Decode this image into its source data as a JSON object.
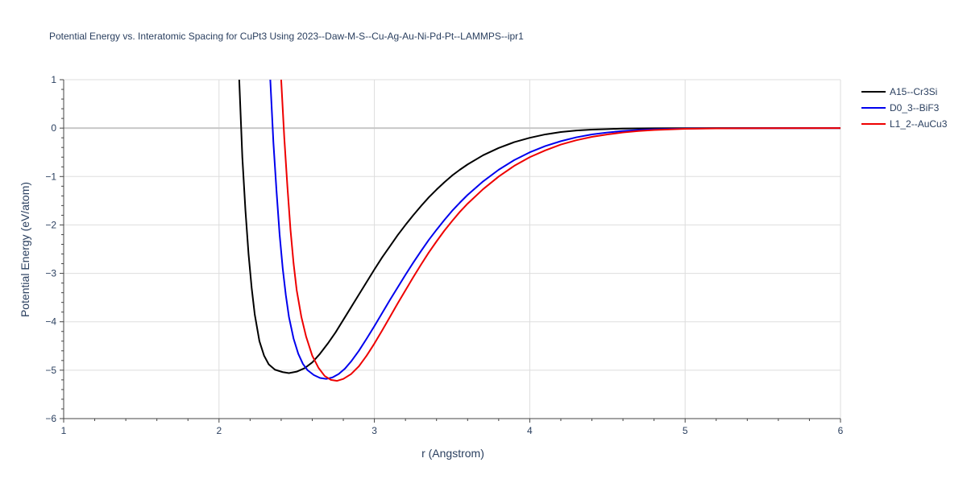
{
  "chart_data": {
    "type": "line",
    "title": "Potential Energy vs. Interatomic Spacing for CuPt3 Using 2023--Daw-M-S--Cu-Ag-Au-Ni-Pd-Pt--LAMMPS--ipr1",
    "xlabel": "r (Angstrom)",
    "ylabel": "Potential Energy (eV/atom)",
    "xlim": [
      1,
      6
    ],
    "ylim": [
      -6,
      1
    ],
    "xticks": [
      1,
      2,
      3,
      4,
      5,
      6
    ],
    "yticks": [
      1,
      0,
      -1,
      -2,
      -3,
      -4,
      -5,
      -6
    ],
    "xtick_labels": [
      "1",
      "2",
      "3",
      "4",
      "5",
      "6"
    ],
    "ytick_labels": [
      "1",
      "0",
      "−1",
      "−2",
      "−3",
      "−4",
      "−5",
      "−6"
    ],
    "grid": true,
    "legend_position": "top-right",
    "series": [
      {
        "name": "A15--Cr3Si",
        "color": "#000000",
        "points": [
          [
            2.13,
            1.0
          ],
          [
            2.15,
            -0.6
          ],
          [
            2.17,
            -1.7
          ],
          [
            2.19,
            -2.6
          ],
          [
            2.21,
            -3.3
          ],
          [
            2.23,
            -3.85
          ],
          [
            2.26,
            -4.4
          ],
          [
            2.29,
            -4.7
          ],
          [
            2.32,
            -4.88
          ],
          [
            2.36,
            -4.99
          ],
          [
            2.41,
            -5.04
          ],
          [
            2.45,
            -5.06
          ],
          [
            2.5,
            -5.03
          ],
          [
            2.55,
            -4.96
          ],
          [
            2.6,
            -4.84
          ],
          [
            2.65,
            -4.66
          ],
          [
            2.7,
            -4.45
          ],
          [
            2.75,
            -4.22
          ],
          [
            2.8,
            -3.96
          ],
          [
            2.85,
            -3.7
          ],
          [
            2.9,
            -3.44
          ],
          [
            2.95,
            -3.18
          ],
          [
            3.0,
            -2.92
          ],
          [
            3.05,
            -2.67
          ],
          [
            3.1,
            -2.44
          ],
          [
            3.15,
            -2.21
          ],
          [
            3.2,
            -2.0
          ],
          [
            3.25,
            -1.8
          ],
          [
            3.3,
            -1.61
          ],
          [
            3.35,
            -1.43
          ],
          [
            3.4,
            -1.27
          ],
          [
            3.45,
            -1.12
          ],
          [
            3.5,
            -0.98
          ],
          [
            3.55,
            -0.86
          ],
          [
            3.6,
            -0.75
          ],
          [
            3.7,
            -0.56
          ],
          [
            3.8,
            -0.41
          ],
          [
            3.9,
            -0.29
          ],
          [
            4.0,
            -0.2
          ],
          [
            4.1,
            -0.13
          ],
          [
            4.2,
            -0.08
          ],
          [
            4.3,
            -0.05
          ],
          [
            4.4,
            -0.03
          ],
          [
            4.5,
            -0.02
          ],
          [
            4.6,
            -0.01
          ],
          [
            4.8,
            -0.004
          ],
          [
            5.0,
            -0.001
          ],
          [
            5.5,
            0.0
          ],
          [
            6.0,
            0.0
          ]
        ]
      },
      {
        "name": "D0_3--BiF3",
        "color": "#0000ee",
        "points": [
          [
            2.33,
            1.0
          ],
          [
            2.35,
            -0.3
          ],
          [
            2.37,
            -1.3
          ],
          [
            2.39,
            -2.2
          ],
          [
            2.41,
            -2.9
          ],
          [
            2.43,
            -3.45
          ],
          [
            2.45,
            -3.9
          ],
          [
            2.48,
            -4.35
          ],
          [
            2.51,
            -4.66
          ],
          [
            2.54,
            -4.87
          ],
          [
            2.57,
            -5.0
          ],
          [
            2.61,
            -5.1
          ],
          [
            2.65,
            -5.16
          ],
          [
            2.69,
            -5.18
          ],
          [
            2.73,
            -5.15
          ],
          [
            2.77,
            -5.08
          ],
          [
            2.81,
            -4.97
          ],
          [
            2.85,
            -4.82
          ],
          [
            2.9,
            -4.6
          ],
          [
            2.95,
            -4.35
          ],
          [
            3.0,
            -4.09
          ],
          [
            3.05,
            -3.82
          ],
          [
            3.1,
            -3.55
          ],
          [
            3.15,
            -3.29
          ],
          [
            3.2,
            -3.03
          ],
          [
            3.25,
            -2.78
          ],
          [
            3.3,
            -2.54
          ],
          [
            3.35,
            -2.31
          ],
          [
            3.4,
            -2.1
          ],
          [
            3.45,
            -1.9
          ],
          [
            3.5,
            -1.71
          ],
          [
            3.55,
            -1.54
          ],
          [
            3.6,
            -1.38
          ],
          [
            3.7,
            -1.1
          ],
          [
            3.8,
            -0.86
          ],
          [
            3.9,
            -0.66
          ],
          [
            4.0,
            -0.5
          ],
          [
            4.1,
            -0.37
          ],
          [
            4.2,
            -0.27
          ],
          [
            4.3,
            -0.19
          ],
          [
            4.4,
            -0.13
          ],
          [
            4.5,
            -0.09
          ],
          [
            4.6,
            -0.06
          ],
          [
            4.7,
            -0.04
          ],
          [
            4.8,
            -0.025
          ],
          [
            5.0,
            -0.01
          ],
          [
            5.2,
            -0.004
          ],
          [
            5.5,
            -0.001
          ],
          [
            6.0,
            0.0
          ]
        ]
      },
      {
        "name": "L1_2--AuCu3",
        "color": "#ee0000",
        "points": [
          [
            2.4,
            1.0
          ],
          [
            2.42,
            -0.2
          ],
          [
            2.44,
            -1.2
          ],
          [
            2.46,
            -2.1
          ],
          [
            2.48,
            -2.8
          ],
          [
            2.5,
            -3.35
          ],
          [
            2.53,
            -3.9
          ],
          [
            2.56,
            -4.3
          ],
          [
            2.6,
            -4.7
          ],
          [
            2.64,
            -4.95
          ],
          [
            2.68,
            -5.12
          ],
          [
            2.72,
            -5.2
          ],
          [
            2.76,
            -5.22
          ],
          [
            2.8,
            -5.18
          ],
          [
            2.85,
            -5.08
          ],
          [
            2.9,
            -4.92
          ],
          [
            2.95,
            -4.7
          ],
          [
            3.0,
            -4.45
          ],
          [
            3.05,
            -4.18
          ],
          [
            3.1,
            -3.9
          ],
          [
            3.15,
            -3.62
          ],
          [
            3.2,
            -3.35
          ],
          [
            3.25,
            -3.08
          ],
          [
            3.3,
            -2.82
          ],
          [
            3.35,
            -2.57
          ],
          [
            3.4,
            -2.34
          ],
          [
            3.45,
            -2.12
          ],
          [
            3.5,
            -1.92
          ],
          [
            3.55,
            -1.73
          ],
          [
            3.6,
            -1.56
          ],
          [
            3.7,
            -1.26
          ],
          [
            3.8,
            -1.0
          ],
          [
            3.9,
            -0.78
          ],
          [
            4.0,
            -0.6
          ],
          [
            4.1,
            -0.46
          ],
          [
            4.2,
            -0.34
          ],
          [
            4.3,
            -0.25
          ],
          [
            4.4,
            -0.18
          ],
          [
            4.5,
            -0.13
          ],
          [
            4.6,
            -0.09
          ],
          [
            4.7,
            -0.06
          ],
          [
            4.8,
            -0.04
          ],
          [
            5.0,
            -0.015
          ],
          [
            5.2,
            -0.006
          ],
          [
            5.5,
            -0.001
          ],
          [
            6.0,
            0.0
          ]
        ]
      }
    ]
  }
}
